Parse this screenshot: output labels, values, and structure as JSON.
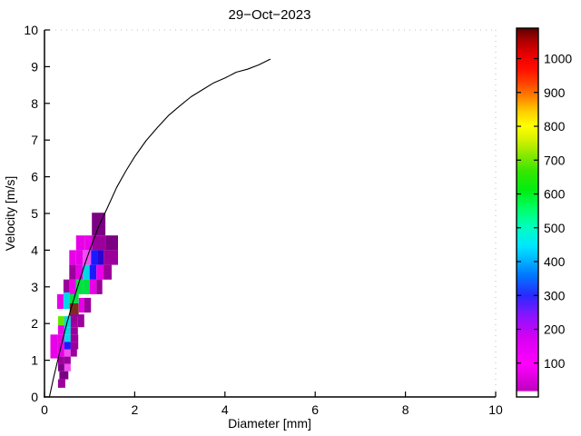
{
  "chart_data": {
    "type": "heatmap",
    "title": "29−Oct−2023",
    "xlabel": "Diameter [mm]",
    "ylabel": "Velocity [m/s]",
    "xlim": [
      0,
      10
    ],
    "ylim": [
      0,
      10
    ],
    "x_ticks": [
      "0",
      "2",
      "4",
      "6",
      "8",
      "10"
    ],
    "y_ticks": [
      "0",
      "1",
      "2",
      "3",
      "4",
      "5",
      "6",
      "7",
      "8",
      "9",
      "10"
    ],
    "grid": false,
    "legend": "none",
    "palette": {
      "M": "#e800e8",
      "PK": "#f24df2",
      "P": "#9c009c",
      "DP": "#7c0084",
      "B": "#1a1aff",
      "DB": "#2806d2",
      "C": "#00d8e8",
      "G": "#00e040",
      "LG": "#63e600",
      "BR": "#7b2e1e"
    },
    "cells": [
      [
        1.05,
        4.4,
        0.3,
        0.62,
        "DP"
      ],
      [
        1.05,
        4.0,
        0.3,
        0.4,
        "P"
      ],
      [
        1.35,
        4.0,
        0.28,
        0.4,
        "DP"
      ],
      [
        1.31,
        3.6,
        0.32,
        0.4,
        "P"
      ],
      [
        0.7,
        4.0,
        0.19,
        0.4,
        "M"
      ],
      [
        0.89,
        4.0,
        0.16,
        0.4,
        "M"
      ],
      [
        0.55,
        3.6,
        0.15,
        0.4,
        "M"
      ],
      [
        0.7,
        3.6,
        0.15,
        0.4,
        "M"
      ],
      [
        0.85,
        3.6,
        0.18,
        0.4,
        "PK"
      ],
      [
        1.03,
        3.6,
        0.14,
        0.4,
        "B"
      ],
      [
        1.17,
        3.6,
        0.14,
        0.4,
        "DB"
      ],
      [
        0.55,
        3.2,
        0.15,
        0.4,
        "P"
      ],
      [
        0.7,
        3.2,
        0.15,
        0.4,
        "M"
      ],
      [
        0.85,
        3.2,
        0.15,
        0.4,
        "C"
      ],
      [
        1.0,
        3.2,
        0.15,
        0.4,
        "B"
      ],
      [
        1.15,
        3.2,
        0.16,
        0.4,
        "M"
      ],
      [
        1.31,
        3.2,
        0.18,
        0.4,
        "P"
      ],
      [
        0.42,
        2.8,
        0.13,
        0.4,
        "P"
      ],
      [
        0.55,
        2.8,
        0.15,
        0.4,
        "M"
      ],
      [
        0.7,
        2.8,
        0.15,
        0.4,
        "G"
      ],
      [
        0.85,
        2.8,
        0.15,
        0.4,
        "G"
      ],
      [
        1.0,
        2.8,
        0.15,
        0.4,
        "M"
      ],
      [
        1.15,
        2.8,
        0.13,
        0.4,
        "P"
      ],
      [
        0.28,
        2.4,
        0.14,
        0.4,
        "M"
      ],
      [
        0.42,
        2.4,
        0.14,
        0.45,
        "C"
      ],
      [
        0.56,
        2.55,
        0.2,
        0.25,
        "G"
      ],
      [
        0.56,
        2.2,
        0.2,
        0.35,
        "BR"
      ],
      [
        0.76,
        2.3,
        0.12,
        0.4,
        "M"
      ],
      [
        0.88,
        2.3,
        0.15,
        0.4,
        "P"
      ],
      [
        0.3,
        1.95,
        0.14,
        0.25,
        "LG"
      ],
      [
        0.44,
        1.9,
        0.14,
        0.3,
        "C"
      ],
      [
        0.58,
        1.9,
        0.16,
        0.35,
        "P"
      ],
      [
        0.74,
        1.9,
        0.14,
        0.35,
        "P"
      ],
      [
        0.3,
        1.7,
        0.14,
        0.25,
        "M"
      ],
      [
        0.44,
        1.7,
        0.14,
        0.2,
        "C"
      ],
      [
        0.58,
        1.7,
        0.16,
        0.2,
        "P"
      ],
      [
        0.13,
        1.05,
        0.17,
        0.65,
        "M"
      ],
      [
        0.3,
        1.5,
        0.14,
        0.2,
        "M"
      ],
      [
        0.44,
        1.5,
        0.14,
        0.2,
        "C"
      ],
      [
        0.58,
        1.5,
        0.17,
        0.2,
        "P"
      ],
      [
        0.3,
        1.3,
        0.14,
        0.2,
        "M"
      ],
      [
        0.44,
        1.3,
        0.14,
        0.2,
        "B"
      ],
      [
        0.58,
        1.3,
        0.17,
        0.2,
        "P"
      ],
      [
        0.3,
        1.1,
        0.14,
        0.2,
        "M"
      ],
      [
        0.44,
        1.1,
        0.14,
        0.2,
        "PK"
      ],
      [
        0.58,
        1.1,
        0.14,
        0.2,
        "P"
      ],
      [
        0.3,
        0.9,
        0.14,
        0.2,
        "P"
      ],
      [
        0.44,
        0.9,
        0.14,
        0.2,
        "P"
      ],
      [
        0.3,
        0.7,
        0.14,
        0.2,
        "DP"
      ],
      [
        0.44,
        0.7,
        0.14,
        0.2,
        "PK"
      ],
      [
        0.33,
        0.48,
        0.2,
        0.22,
        "DP"
      ],
      [
        0.3,
        0.25,
        0.16,
        0.23,
        "P"
      ]
    ],
    "curve": {
      "name": "terminal velocity curve",
      "color": "#000000",
      "points": [
        [
          0.108,
          0.0
        ],
        [
          0.2,
          0.51
        ],
        [
          0.3,
          1.03
        ],
        [
          0.4,
          1.55
        ],
        [
          0.5,
          2.02
        ],
        [
          0.6,
          2.46
        ],
        [
          0.7,
          2.87
        ],
        [
          0.8,
          3.26
        ],
        [
          0.9,
          3.64
        ],
        [
          1.0,
          3.99
        ],
        [
          1.2,
          4.64
        ],
        [
          1.4,
          5.17
        ],
        [
          1.6,
          5.71
        ],
        [
          1.8,
          6.15
        ],
        [
          2.0,
          6.55
        ],
        [
          2.25,
          6.98
        ],
        [
          2.5,
          7.34
        ],
        [
          2.75,
          7.67
        ],
        [
          3.0,
          7.93
        ],
        [
          3.25,
          8.18
        ],
        [
          3.5,
          8.37
        ],
        [
          3.75,
          8.56
        ],
        [
          4.0,
          8.69
        ],
        [
          4.25,
          8.85
        ],
        [
          4.5,
          8.93
        ],
        [
          4.75,
          9.05
        ],
        [
          5.0,
          9.2
        ]
      ]
    },
    "colorbar": {
      "min": 0,
      "max": 1090,
      "tick_labels": [
        "100",
        "200",
        "300",
        "400",
        "500",
        "600",
        "700",
        "800",
        "900",
        "1000"
      ],
      "tick_values": [
        100,
        200,
        300,
        400,
        500,
        600,
        700,
        800,
        900,
        1000
      ],
      "gradient": [
        [
          0.0,
          "#ffffff"
        ],
        [
          0.013,
          "#ffffff"
        ],
        [
          0.018,
          "#c000c0"
        ],
        [
          0.05,
          "#dc00dc"
        ],
        [
          0.09,
          "#ff00ff"
        ],
        [
          0.16,
          "#d600f2"
        ],
        [
          0.22,
          "#8a14ff"
        ],
        [
          0.275,
          "#2929ff"
        ],
        [
          0.33,
          "#0077ff"
        ],
        [
          0.37,
          "#00b3ff"
        ],
        [
          0.41,
          "#00e6ff"
        ],
        [
          0.46,
          "#00ffbf"
        ],
        [
          0.51,
          "#00ff66"
        ],
        [
          0.56,
          "#00ee11"
        ],
        [
          0.61,
          "#33e600"
        ],
        [
          0.655,
          "#88e800"
        ],
        [
          0.7,
          "#d9f200"
        ],
        [
          0.735,
          "#ffff00"
        ],
        [
          0.775,
          "#ffcc00"
        ],
        [
          0.81,
          "#ff8800"
        ],
        [
          0.85,
          "#ff4400"
        ],
        [
          0.89,
          "#ff0d00"
        ],
        [
          0.93,
          "#e60000"
        ],
        [
          0.97,
          "#a40000"
        ],
        [
          1.0,
          "#5c0000"
        ]
      ]
    }
  }
}
